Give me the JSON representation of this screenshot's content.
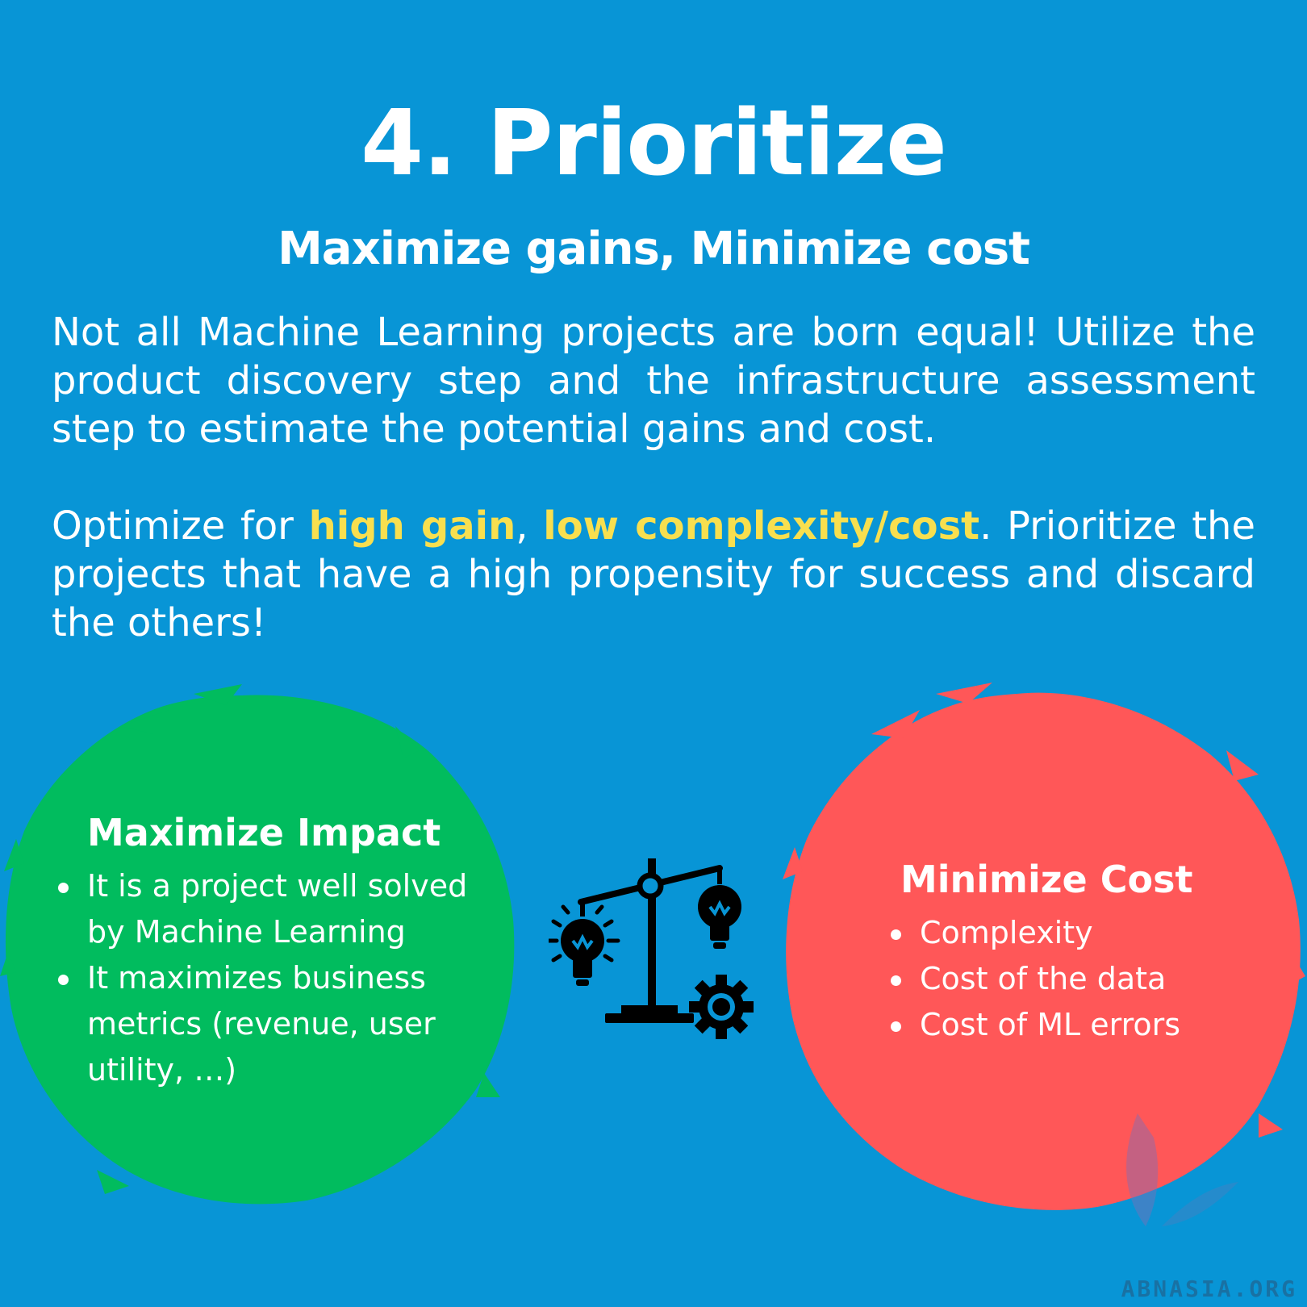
{
  "header": {
    "title": "4. Prioritize",
    "subtitle": "Maximize gains, Minimize cost"
  },
  "body": {
    "paragraph_1": "Not all Machine Learning projects are born equal! Utilize the product discovery step and the infrastructure assessment step to estimate the potential gains and cost.",
    "paragraph_2_prefix": "Optimize for ",
    "paragraph_2_highlight_1": "high gain",
    "paragraph_2_separator": ", ",
    "paragraph_2_highlight_2": "low complexity/cost",
    "paragraph_2_suffix": ". Prioritize the projects that have a high propensity for success and discard the others!"
  },
  "impact_panel": {
    "title": "Maximize Impact",
    "items": [
      "It is a project well solved by Machine Learning",
      "It maximizes business metrics (revenue, user utility, …)"
    ]
  },
  "cost_panel": {
    "title": "Minimize Cost",
    "items": [
      "Complexity",
      "Cost of the data",
      "Cost of ML errors"
    ]
  },
  "center_icon": "balance-scale-lightbulb-gear-icon",
  "watermark": "ABNASIA.ORG",
  "colors": {
    "background": "#0895D6",
    "highlight": "#F8DF4F",
    "impact_blob": "#01BC5E",
    "cost_blob": "#FF5758",
    "text": "#FFFFFF"
  }
}
